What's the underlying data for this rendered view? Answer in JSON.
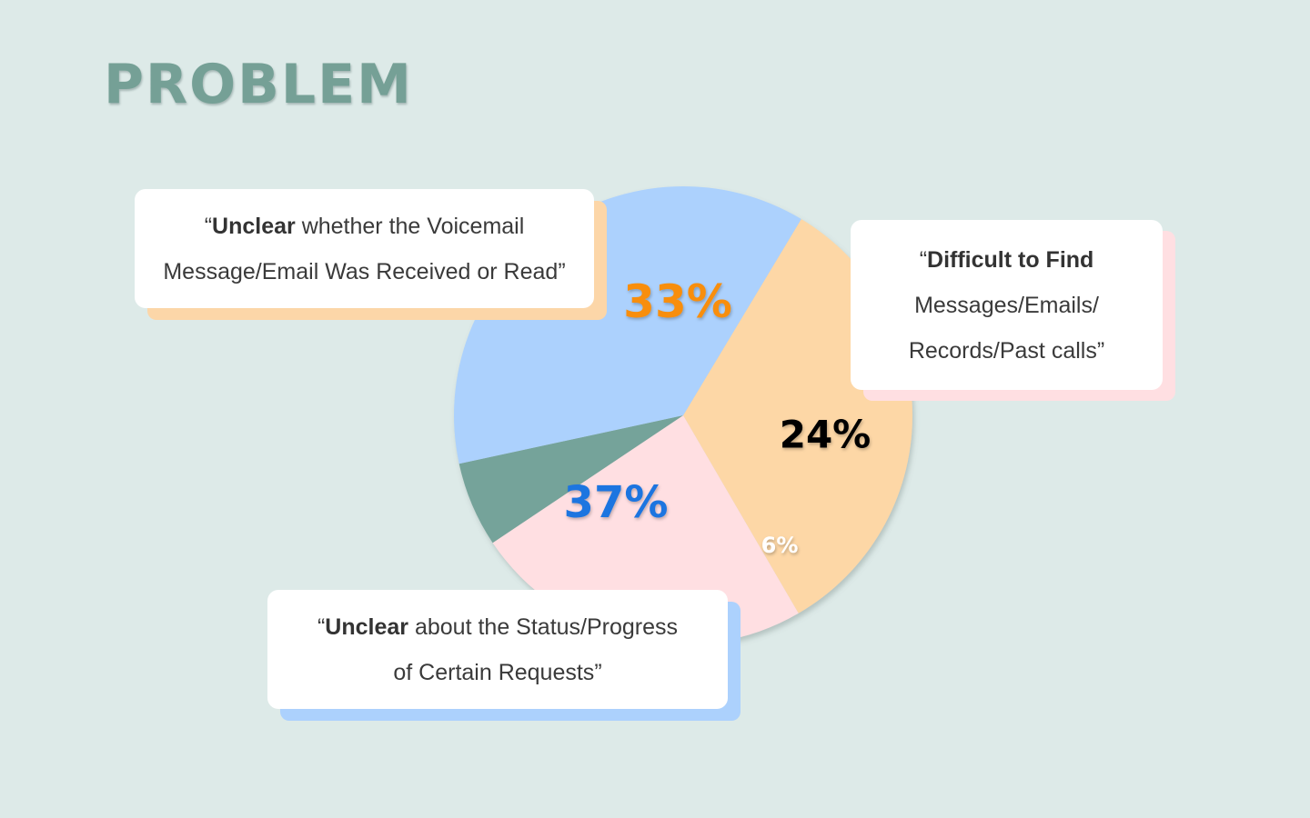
{
  "page": {
    "title": "PROBLEM"
  },
  "colors": {
    "background": "#ddeae8",
    "title": "#75a096",
    "slice_orange": "#fdd7a6",
    "slice_pink": "#ffdfe2",
    "slice_green": "#75a39a",
    "slice_blue": "#acd1fd",
    "label_orange": "#f88e0c",
    "label_red": "#e0545e",
    "label_green": "#ffffff",
    "label_blue": "#1f75e0"
  },
  "chart_data": {
    "type": "pie",
    "title": "",
    "slices": [
      {
        "key": "orange",
        "value": 33,
        "label": "33%"
      },
      {
        "key": "pink",
        "value": 24,
        "label": "24%"
      },
      {
        "key": "green",
        "value": 6,
        "label": "6%"
      },
      {
        "key": "blue",
        "value": 37,
        "label": "37%"
      }
    ]
  },
  "callouts": {
    "voicemail": {
      "quote_open": "“",
      "bold": "Unclear",
      "line1_rest": " whether the Voicemail",
      "line2": "Message/Email Was Received or Read",
      "quote_close": "”"
    },
    "difficult": {
      "quote_open": "“",
      "bold": "Difficult to Find",
      "line2": "Messages/Emails/",
      "line3": "Records/Past calls",
      "quote_close": "”"
    },
    "status": {
      "quote_open": "“",
      "bold": "Unclear",
      "line1_rest": " about the Status/Progress",
      "line2": "of Certain Requests",
      "quote_close": "”"
    }
  }
}
